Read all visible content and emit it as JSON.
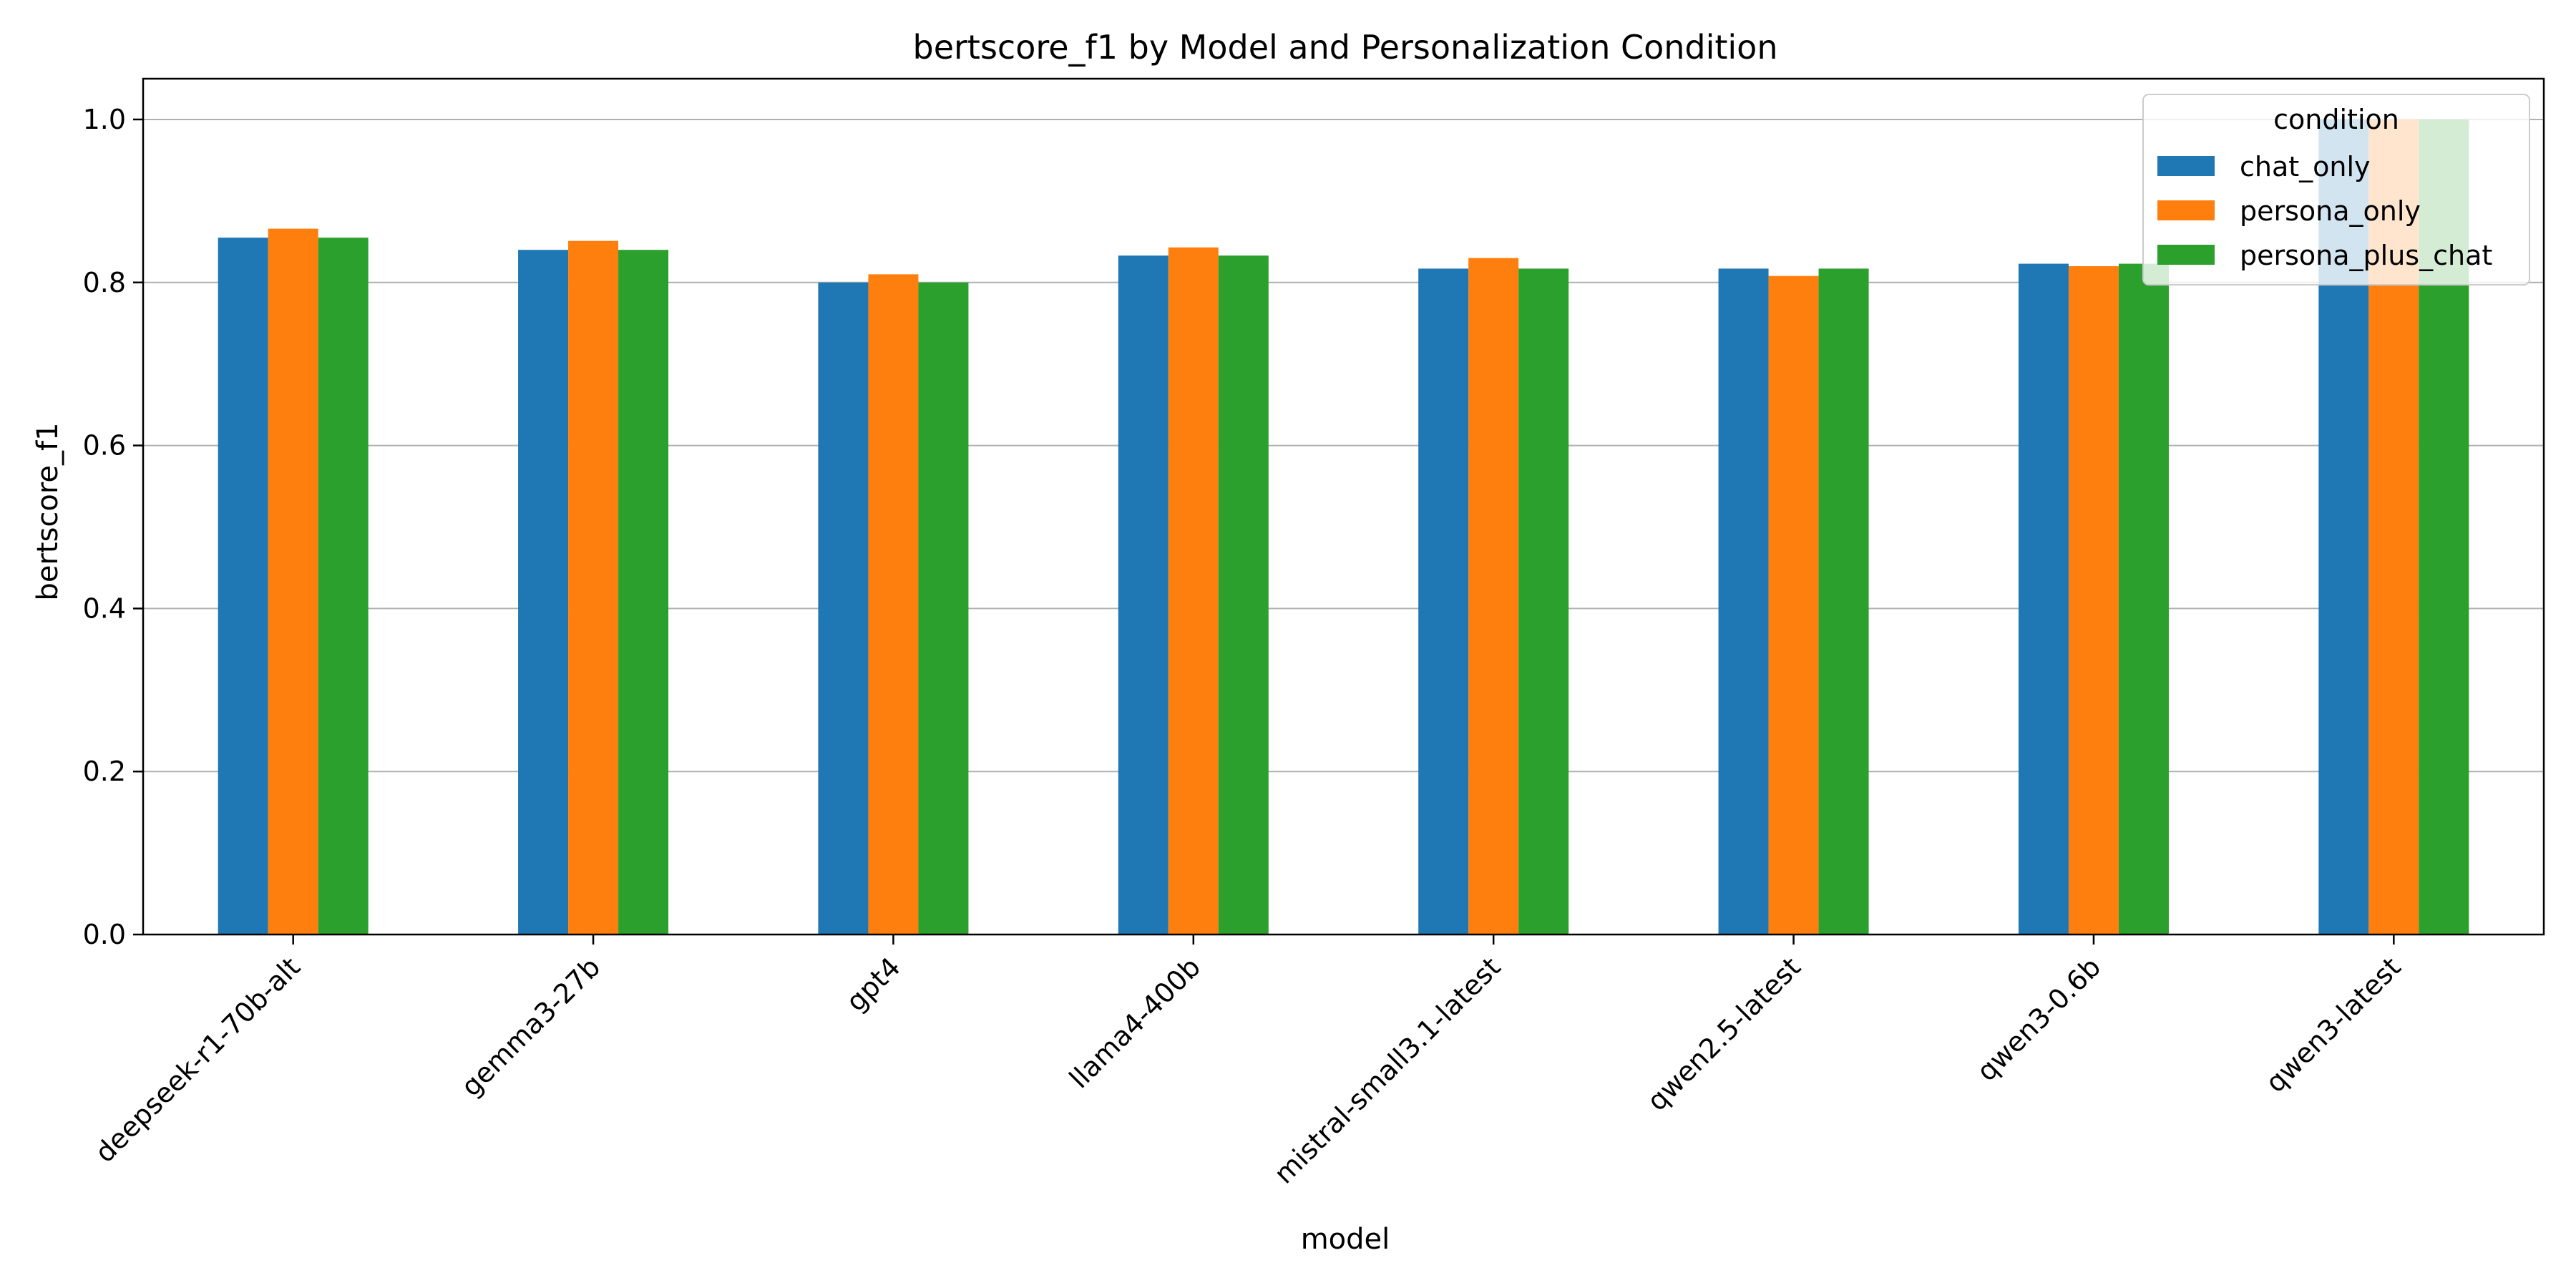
{
  "chart_data": {
    "type": "bar",
    "title": "bertscore_f1 by Model and Personalization Condition",
    "xlabel": "model",
    "ylabel": "bertscore_f1",
    "ylim": [
      0,
      1.05
    ],
    "yticks": [
      0.0,
      0.2,
      0.4,
      0.6,
      0.8,
      1.0
    ],
    "ytick_labels": [
      "0.0",
      "0.2",
      "0.4",
      "0.6",
      "0.8",
      "1.0"
    ],
    "grid": "horizontal",
    "legend": {
      "title": "condition",
      "placement": "top-right"
    },
    "categories": [
      "deepseek-r1-70b-alt",
      "gemma3-27b",
      "gpt4",
      "llama4-400b",
      "mistral-small3.1-latest",
      "qwen2.5-latest",
      "qwen3-0.6b",
      "qwen3-latest"
    ],
    "series": [
      {
        "name": "chat_only",
        "color": "#1f77b4",
        "values": [
          0.855,
          0.84,
          0.8,
          0.833,
          0.817,
          0.817,
          0.823,
          1.0
        ]
      },
      {
        "name": "persona_only",
        "color": "#ff7f0e",
        "values": [
          0.866,
          0.851,
          0.81,
          0.843,
          0.83,
          0.808,
          0.82,
          1.0
        ]
      },
      {
        "name": "persona_plus_chat",
        "color": "#2ca02c",
        "values": [
          0.855,
          0.84,
          0.8,
          0.833,
          0.817,
          0.817,
          0.823,
          1.0
        ]
      }
    ]
  }
}
